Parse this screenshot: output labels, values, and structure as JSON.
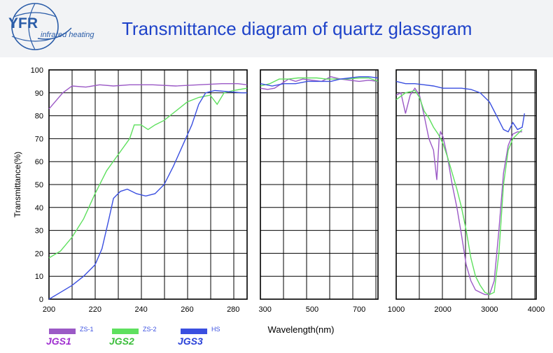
{
  "header": {
    "logo_text": "YFR",
    "logo_subtitle": "infrared heating",
    "title": "Transmittance diagram of quartz glassgram"
  },
  "legend": [
    {
      "label": "ZS-1",
      "grade": "JGS1",
      "color": "#9b59c6"
    },
    {
      "label": "ZS-2",
      "grade": "JGS2",
      "color": "#5ee05e"
    },
    {
      "label": "HS",
      "grade": "JGS3",
      "color": "#3a4fe0"
    }
  ],
  "colors": {
    "series_label": "#3a4fe0",
    "grade": "#a030d0",
    "grade_green": "#3cbe3c",
    "grade_blue": "#2840d8",
    "grid": "#000000"
  },
  "chart_data": {
    "type": "line",
    "ylabel": "Transmittance(%)",
    "xlabel": "Wavelength(nm)",
    "ylim": [
      0,
      100
    ],
    "yticks": [
      0,
      10,
      20,
      30,
      40,
      50,
      60,
      70,
      80,
      90,
      100
    ],
    "grid": true,
    "panels": [
      {
        "xlim": [
          200,
          286
        ],
        "xticks": [
          200,
          220,
          240,
          260,
          280
        ],
        "series": [
          {
            "name": "ZS-1",
            "color": "#9b59c6",
            "points": [
              [
                200,
                83
              ],
              [
                206,
                90
              ],
              [
                210,
                93
              ],
              [
                216,
                92.5
              ],
              [
                222,
                93.5
              ],
              [
                228,
                93
              ],
              [
                235,
                93.5
              ],
              [
                245,
                93.5
              ],
              [
                255,
                93
              ],
              [
                265,
                93.5
              ],
              [
                275,
                94
              ],
              [
                282,
                94
              ],
              [
                286,
                93.5
              ]
            ]
          },
          {
            "name": "ZS-2",
            "color": "#5ee05e",
            "points": [
              [
                200,
                18
              ],
              [
                205,
                21
              ],
              [
                210,
                27
              ],
              [
                215,
                35
              ],
              [
                220,
                46
              ],
              [
                225,
                56
              ],
              [
                230,
                63
              ],
              [
                235,
                70
              ],
              [
                237,
                76
              ],
              [
                240,
                76
              ],
              [
                243,
                74
              ],
              [
                246,
                76
              ],
              [
                250,
                78
              ],
              [
                255,
                82
              ],
              [
                260,
                86
              ],
              [
                265,
                88
              ],
              [
                270,
                89
              ],
              [
                273,
                85
              ],
              [
                276,
                90
              ],
              [
                280,
                91
              ],
              [
                286,
                92
              ]
            ]
          },
          {
            "name": "HS",
            "color": "#3a4fe0",
            "points": [
              [
                200,
                0
              ],
              [
                205,
                3
              ],
              [
                210,
                6
              ],
              [
                215,
                10
              ],
              [
                220,
                15
              ],
              [
                223,
                22
              ],
              [
                226,
                35
              ],
              [
                228,
                44
              ],
              [
                231,
                47
              ],
              [
                234,
                48
              ],
              [
                238,
                46
              ],
              [
                242,
                45
              ],
              [
                246,
                46
              ],
              [
                250,
                50
              ],
              [
                254,
                58
              ],
              [
                258,
                67
              ],
              [
                262,
                76
              ],
              [
                265,
                85
              ],
              [
                268,
                90
              ],
              [
                272,
                91
              ],
              [
                278,
                90.5
              ],
              [
                284,
                90
              ],
              [
                286,
                90
              ]
            ]
          }
        ]
      },
      {
        "xlim": [
          280,
          780
        ],
        "xticks": [
          300,
          500,
          700
        ],
        "series": [
          {
            "name": "ZS-1",
            "color": "#9b59c6",
            "points": [
              [
                280,
                92
              ],
              [
                310,
                91.5
              ],
              [
                340,
                92
              ],
              [
                370,
                94
              ],
              [
                400,
                96
              ],
              [
                430,
                95
              ],
              [
                460,
                96
              ],
              [
                500,
                95.5
              ],
              [
                540,
                95
              ],
              [
                580,
                97
              ],
              [
                620,
                96
              ],
              [
                660,
                95.5
              ],
              [
                700,
                95
              ],
              [
                740,
                95.5
              ],
              [
                780,
                95
              ]
            ]
          },
          {
            "name": "ZS-2",
            "color": "#5ee05e",
            "points": [
              [
                280,
                93
              ],
              [
                320,
                94
              ],
              [
                360,
                96
              ],
              [
                400,
                96
              ],
              [
                440,
                96.5
              ],
              [
                480,
                96.5
              ],
              [
                520,
                96.5
              ],
              [
                560,
                96
              ],
              [
                600,
                96
              ],
              [
                650,
                96
              ],
              [
                700,
                96.5
              ],
              [
                740,
                96.5
              ],
              [
                780,
                95
              ]
            ]
          },
          {
            "name": "HS",
            "color": "#3a4fe0",
            "points": [
              [
                280,
                94
              ],
              [
                330,
                93
              ],
              [
                380,
                94
              ],
              [
                430,
                94
              ],
              [
                480,
                95
              ],
              [
                530,
                95
              ],
              [
                580,
                95
              ],
              [
                620,
                96
              ],
              [
                660,
                96.5
              ],
              [
                700,
                97
              ],
              [
                740,
                97
              ],
              [
                780,
                96.5
              ]
            ]
          }
        ]
      },
      {
        "xlim": [
          1000,
          4000
        ],
        "xticks": [
          1000,
          2000,
          3000,
          4000
        ],
        "series": [
          {
            "name": "ZS-1",
            "color": "#9b59c6",
            "points": [
              [
                1000,
                89
              ],
              [
                1100,
                90
              ],
              [
                1200,
                81
              ],
              [
                1300,
                89
              ],
              [
                1400,
                92
              ],
              [
                1500,
                89
              ],
              [
                1600,
                80
              ],
              [
                1700,
                70
              ],
              [
                1800,
                65
              ],
              [
                1870,
                52
              ],
              [
                1920,
                70
              ],
              [
                1950,
                73
              ],
              [
                2000,
                71
              ],
              [
                2100,
                62
              ],
              [
                2200,
                50
              ],
              [
                2300,
                40
              ],
              [
                2400,
                28
              ],
              [
                2500,
                15
              ],
              [
                2600,
                8
              ],
              [
                2700,
                4
              ],
              [
                2800,
                3
              ],
              [
                2900,
                2
              ],
              [
                3000,
                2
              ],
              [
                3100,
                8
              ],
              [
                3200,
                30
              ],
              [
                3300,
                55
              ],
              [
                3400,
                67
              ],
              [
                3500,
                72
              ],
              [
                3600,
                73
              ],
              [
                3700,
                73
              ]
            ]
          },
          {
            "name": "ZS-2",
            "color": "#5ee05e",
            "points": [
              [
                1000,
                87
              ],
              [
                1200,
                90
              ],
              [
                1400,
                91
              ],
              [
                1500,
                88
              ],
              [
                1600,
                82
              ],
              [
                1700,
                79
              ],
              [
                1800,
                75
              ],
              [
                1900,
                72
              ],
              [
                2000,
                68
              ],
              [
                2100,
                62
              ],
              [
                2200,
                55
              ],
              [
                2300,
                48
              ],
              [
                2400,
                40
              ],
              [
                2500,
                30
              ],
              [
                2600,
                18
              ],
              [
                2700,
                10
              ],
              [
                2800,
                6
              ],
              [
                2900,
                3
              ],
              [
                3000,
                2
              ],
              [
                3100,
                3
              ],
              [
                3200,
                20
              ],
              [
                3300,
                50
              ],
              [
                3400,
                65
              ],
              [
                3500,
                70
              ],
              [
                3600,
                72
              ],
              [
                3700,
                74
              ]
            ]
          },
          {
            "name": "HS",
            "color": "#3a4fe0",
            "points": [
              [
                1000,
                95
              ],
              [
                1200,
                94
              ],
              [
                1400,
                94
              ],
              [
                1600,
                93.5
              ],
              [
                1800,
                93
              ],
              [
                2000,
                92
              ],
              [
                2200,
                92
              ],
              [
                2400,
                92
              ],
              [
                2600,
                91.5
              ],
              [
                2800,
                90
              ],
              [
                3000,
                86
              ],
              [
                3100,
                82
              ],
              [
                3200,
                78
              ],
              [
                3300,
                74
              ],
              [
                3400,
                73
              ],
              [
                3500,
                77
              ],
              [
                3600,
                74
              ],
              [
                3700,
                75
              ],
              [
                3750,
                81
              ]
            ]
          }
        ]
      }
    ]
  }
}
